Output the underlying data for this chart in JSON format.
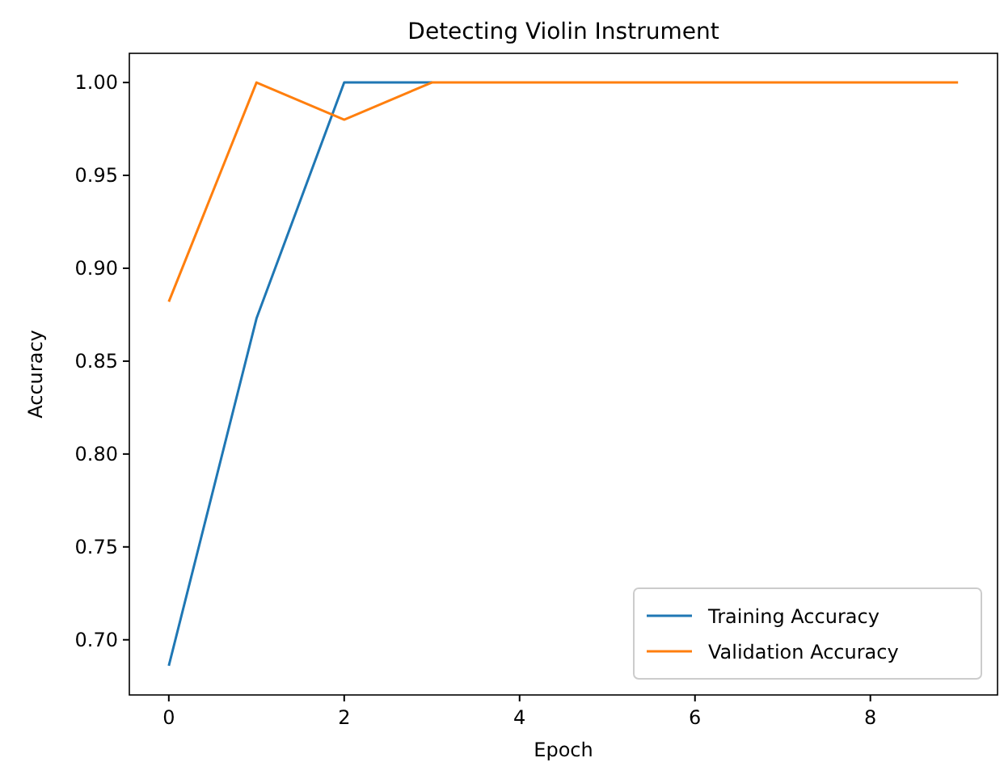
{
  "chart_data": {
    "type": "line",
    "title": "Detecting Violin Instrument",
    "xlabel": "Epoch",
    "ylabel": "Accuracy",
    "x": [
      0,
      1,
      2,
      3,
      4,
      5,
      6,
      7,
      8,
      9
    ],
    "series": [
      {
        "name": "Training Accuracy",
        "color": "#1f77b4",
        "values": [
          0.686,
          0.873,
          1.0,
          1.0,
          null,
          null,
          null,
          null,
          null,
          null
        ]
      },
      {
        "name": "Validation Accuracy",
        "color": "#ff7f0e",
        "values": [
          0.882,
          1.0,
          0.98,
          1.0,
          1.0,
          1.0,
          1.0,
          1.0,
          1.0,
          1.0
        ]
      }
    ],
    "xlim": [
      -0.45,
      9.45
    ],
    "xticks": [
      0,
      2,
      4,
      6,
      8
    ],
    "ylim": [
      0.6703,
      1.0157
    ],
    "yticks": [
      {
        "value": 0.7,
        "label": "0.70"
      },
      {
        "value": 0.75,
        "label": "0.75"
      },
      {
        "value": 0.8,
        "label": "0.80"
      },
      {
        "value": 0.85,
        "label": "0.85"
      },
      {
        "value": 0.9,
        "label": "0.90"
      },
      {
        "value": 0.95,
        "label": "0.95"
      },
      {
        "value": 1.0,
        "label": "1.00"
      }
    ],
    "grid": false,
    "legend": "bottom right",
    "marker": "none",
    "line_style": "solid"
  }
}
